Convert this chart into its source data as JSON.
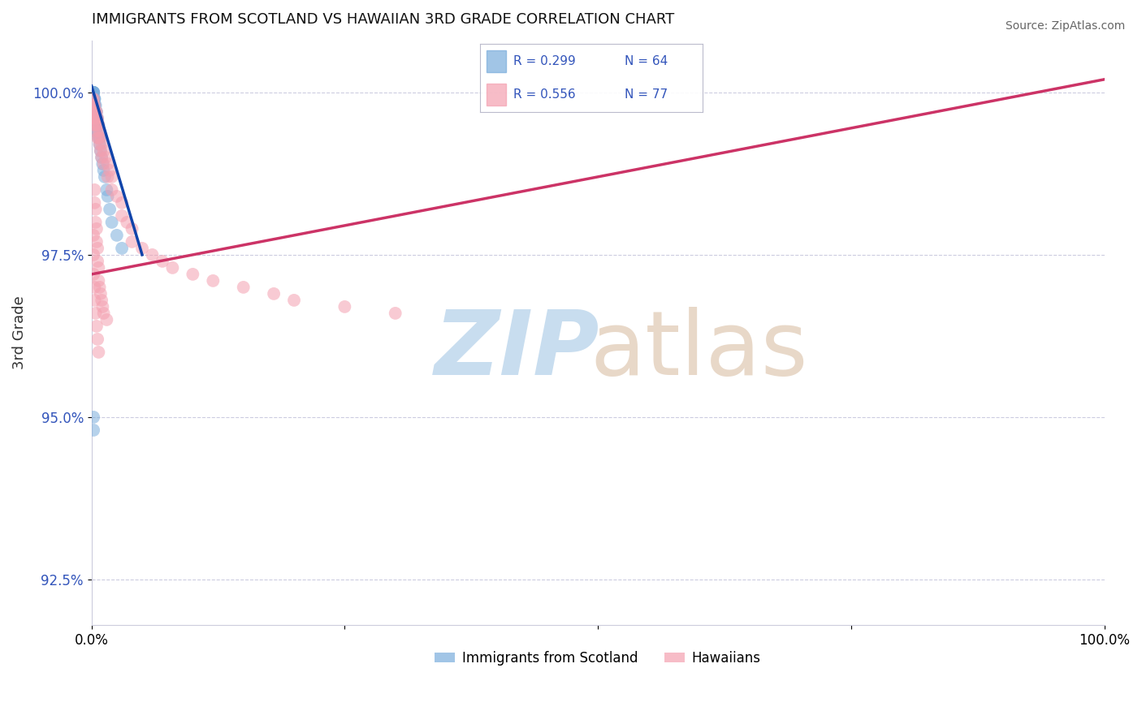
{
  "title": "IMMIGRANTS FROM SCOTLAND VS HAWAIIAN 3RD GRADE CORRELATION CHART",
  "source": "Source: ZipAtlas.com",
  "ylabel": "3rd Grade",
  "xlim": [
    0.0,
    1.0
  ],
  "ylim": [
    0.918,
    1.008
  ],
  "yticks": [
    0.925,
    0.95,
    0.975,
    1.0
  ],
  "ytick_labels": [
    "92.5%",
    "95.0%",
    "97.5%",
    "100.0%"
  ],
  "xticks": [
    0.0,
    0.25,
    0.5,
    0.75,
    1.0
  ],
  "xtick_labels": [
    "0.0%",
    "",
    "",
    "",
    "100.0%"
  ],
  "legend1_label": "Immigrants from Scotland",
  "legend2_label": "Hawaiians",
  "blue_color": "#7AADDC",
  "pink_color": "#F4A0B0",
  "blue_line_color": "#1144AA",
  "pink_line_color": "#CC3366",
  "blue_scatter_x": [
    0.001,
    0.001,
    0.001,
    0.001,
    0.001,
    0.001,
    0.001,
    0.001,
    0.001,
    0.001,
    0.002,
    0.002,
    0.002,
    0.002,
    0.002,
    0.002,
    0.002,
    0.002,
    0.002,
    0.002,
    0.003,
    0.003,
    0.003,
    0.003,
    0.003,
    0.003,
    0.003,
    0.003,
    0.004,
    0.004,
    0.004,
    0.004,
    0.004,
    0.005,
    0.005,
    0.005,
    0.006,
    0.006,
    0.007,
    0.007,
    0.008,
    0.008,
    0.009,
    0.01,
    0.011,
    0.012,
    0.013,
    0.015,
    0.016,
    0.018,
    0.02,
    0.025,
    0.03,
    0.002,
    0.002
  ],
  "blue_scatter_y": [
    1.0,
    1.0,
    1.0,
    1.0,
    1.0,
    1.0,
    1.0,
    1.0,
    1.0,
    1.0,
    1.0,
    1.0,
    1.0,
    1.0,
    0.999,
    0.999,
    0.999,
    0.998,
    0.998,
    0.998,
    0.999,
    0.999,
    0.998,
    0.998,
    0.997,
    0.997,
    0.996,
    0.996,
    0.998,
    0.997,
    0.996,
    0.995,
    0.994,
    0.997,
    0.996,
    0.995,
    0.996,
    0.994,
    0.995,
    0.993,
    0.993,
    0.992,
    0.991,
    0.99,
    0.989,
    0.988,
    0.987,
    0.985,
    0.984,
    0.982,
    0.98,
    0.978,
    0.976,
    0.95,
    0.948
  ],
  "pink_scatter_x": [
    0.001,
    0.001,
    0.001,
    0.002,
    0.002,
    0.002,
    0.002,
    0.003,
    0.003,
    0.003,
    0.003,
    0.004,
    0.004,
    0.004,
    0.005,
    0.005,
    0.005,
    0.006,
    0.006,
    0.006,
    0.007,
    0.007,
    0.008,
    0.008,
    0.009,
    0.009,
    0.01,
    0.01,
    0.012,
    0.012,
    0.014,
    0.016,
    0.016,
    0.018,
    0.02,
    0.02,
    0.025,
    0.03,
    0.03,
    0.035,
    0.04,
    0.04,
    0.05,
    0.06,
    0.07,
    0.08,
    0.1,
    0.12,
    0.15,
    0.18,
    0.2,
    0.25,
    0.3,
    0.003,
    0.003,
    0.004,
    0.004,
    0.005,
    0.005,
    0.006,
    0.006,
    0.007,
    0.007,
    0.008,
    0.009,
    0.01,
    0.011,
    0.012,
    0.015,
    0.002,
    0.002,
    0.002,
    0.003,
    0.003,
    0.004,
    0.005,
    0.006,
    0.007
  ],
  "pink_scatter_y": [
    0.999,
    0.998,
    0.997,
    0.999,
    0.998,
    0.997,
    0.996,
    0.998,
    0.997,
    0.996,
    0.995,
    0.997,
    0.996,
    0.995,
    0.997,
    0.996,
    0.994,
    0.996,
    0.995,
    0.993,
    0.995,
    0.993,
    0.994,
    0.992,
    0.993,
    0.991,
    0.992,
    0.99,
    0.991,
    0.989,
    0.99,
    0.989,
    0.987,
    0.988,
    0.987,
    0.985,
    0.984,
    0.983,
    0.981,
    0.98,
    0.979,
    0.977,
    0.976,
    0.975,
    0.974,
    0.973,
    0.972,
    0.971,
    0.97,
    0.969,
    0.968,
    0.967,
    0.966,
    0.985,
    0.983,
    0.982,
    0.98,
    0.979,
    0.977,
    0.976,
    0.974,
    0.973,
    0.971,
    0.97,
    0.969,
    0.968,
    0.967,
    0.966,
    0.965,
    0.978,
    0.975,
    0.972,
    0.97,
    0.968,
    0.966,
    0.964,
    0.962,
    0.96
  ],
  "blue_line_x0": 0.0,
  "blue_line_x1": 0.05,
  "blue_line_y0": 1.001,
  "blue_line_y1": 0.975,
  "pink_line_x0": 0.0,
  "pink_line_x1": 1.0,
  "pink_line_y0": 0.972,
  "pink_line_y1": 1.002
}
